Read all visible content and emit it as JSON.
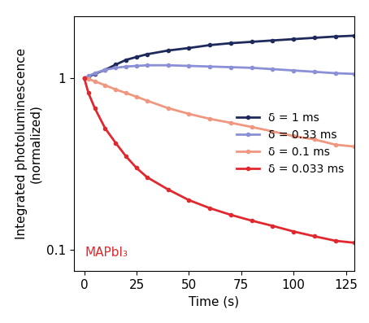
{
  "chart_data": {
    "type": "line",
    "x_label": "Time (s)",
    "y_label": "Integrated photoluminescence\n(normalized)",
    "annotation": "MAPbI₃",
    "log": "y",
    "legend": "center right",
    "grid": false,
    "xlim": [
      -5,
      129
    ],
    "xticks": [
      0,
      25,
      50,
      75,
      100,
      125
    ],
    "ylim": [
      0.075,
      2.3
    ],
    "yticks": [
      0.1,
      1
    ],
    "x": [
      0,
      2,
      5,
      10,
      15,
      20,
      25,
      30,
      40,
      50,
      60,
      70,
      80,
      90,
      100,
      110,
      120,
      129
    ],
    "series": [
      {
        "name": "δ = 1 ms",
        "color": "#1f2a5c",
        "marker": "o",
        "line_style": "solid",
        "values": [
          1,
          1.02,
          1.06,
          1.12,
          1.2,
          1.28,
          1.33,
          1.38,
          1.45,
          1.5,
          1.56,
          1.6,
          1.63,
          1.66,
          1.69,
          1.72,
          1.75,
          1.77
        ]
      },
      {
        "name": "δ = 0.33 ms",
        "color": "#8a8fd6",
        "marker": "o",
        "line_style": "solid",
        "values": [
          1,
          1.03,
          1.07,
          1.12,
          1.15,
          1.17,
          1.18,
          1.19,
          1.19,
          1.18,
          1.17,
          1.16,
          1.15,
          1.13,
          1.11,
          1.09,
          1.07,
          1.06
        ]
      },
      {
        "name": "δ = 0.1 ms",
        "color": "#f0977f",
        "marker": "o",
        "line_style": "solid",
        "values": [
          1,
          0.99,
          0.96,
          0.91,
          0.86,
          0.82,
          0.78,
          0.74,
          0.67,
          0.62,
          0.58,
          0.55,
          0.52,
          0.49,
          0.46,
          0.44,
          0.41,
          0.4
        ]
      },
      {
        "name": "δ = 0.033 ms",
        "color": "#e0282f",
        "marker": "o",
        "line_style": "solid",
        "values": [
          1,
          0.82,
          0.67,
          0.51,
          0.42,
          0.35,
          0.3,
          0.265,
          0.225,
          0.195,
          0.175,
          0.16,
          0.148,
          0.138,
          0.128,
          0.12,
          0.113,
          0.11
        ]
      }
    ]
  }
}
